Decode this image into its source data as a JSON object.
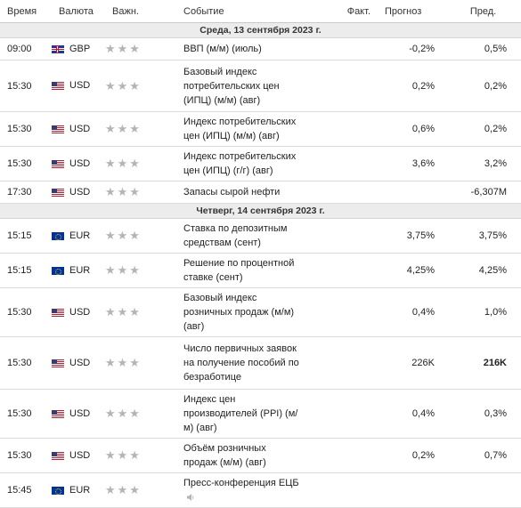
{
  "headers": {
    "time": "Время",
    "currency": "Валюта",
    "importance": "Важн.",
    "event": "Событие",
    "fact": "Факт.",
    "forecast": "Прогноз",
    "previous": "Пред."
  },
  "groups": [
    {
      "date": "Среда, 13 сентября 2023 г.",
      "rows": [
        {
          "time": "09:00",
          "flag": "gb-flag-icon",
          "currency": "GBP",
          "stars": "★★★",
          "event": "ВВП (м/м) (июль)",
          "fact": "",
          "forecast": "-0,2%",
          "previous": "0,5%",
          "prev_bold": false,
          "speaker": false
        },
        {
          "time": "15:30",
          "flag": "us-flag-icon",
          "currency": "USD",
          "stars": "★★★",
          "event": "Базовый индекс потребительских цен (ИПЦ) (м/м) (авг)",
          "fact": "",
          "forecast": "0,2%",
          "previous": "0,2%",
          "prev_bold": false,
          "speaker": false
        },
        {
          "time": "15:30",
          "flag": "us-flag-icon",
          "currency": "USD",
          "stars": "★★★",
          "event": "Индекс потребительских цен (ИПЦ) (м/м) (авг)",
          "fact": "",
          "forecast": "0,6%",
          "previous": "0,2%",
          "prev_bold": false,
          "speaker": false
        },
        {
          "time": "15:30",
          "flag": "us-flag-icon",
          "currency": "USD",
          "stars": "★★★",
          "event": "Индекс потребительских цен (ИПЦ) (г/г) (авг)",
          "fact": "",
          "forecast": "3,6%",
          "previous": "3,2%",
          "prev_bold": false,
          "speaker": false
        },
        {
          "time": "17:30",
          "flag": "us-flag-icon",
          "currency": "USD",
          "stars": "★★★",
          "event": "Запасы сырой нефти",
          "fact": "",
          "forecast": "",
          "previous": "-6,307M",
          "prev_bold": false,
          "speaker": false
        }
      ]
    },
    {
      "date": "Четверг, 14 сентября 2023 г.",
      "rows": [
        {
          "time": "15:15",
          "flag": "eu-flag-icon",
          "currency": "EUR",
          "stars": "★★★",
          "event": "Ставка по депозитным средствам (сент)",
          "fact": "",
          "forecast": "3,75%",
          "previous": "3,75%",
          "prev_bold": false,
          "speaker": false
        },
        {
          "time": "15:15",
          "flag": "eu-flag-icon",
          "currency": "EUR",
          "stars": "★★★",
          "event": "Решение по процентной ставке (сент)",
          "fact": "",
          "forecast": "4,25%",
          "previous": "4,25%",
          "prev_bold": false,
          "speaker": false
        },
        {
          "time": "15:30",
          "flag": "us-flag-icon",
          "currency": "USD",
          "stars": "★★★",
          "event": "Базовый индекс розничных продаж (м/м) (авг)",
          "fact": "",
          "forecast": "0,4%",
          "previous": "1,0%",
          "prev_bold": false,
          "speaker": false
        },
        {
          "time": "15:30",
          "flag": "us-flag-icon",
          "currency": "USD",
          "stars": "★★★",
          "event": "Число первичных заявок на получение пособий по безработице",
          "fact": "",
          "forecast": "226K",
          "previous": "216K",
          "prev_bold": true,
          "speaker": false
        },
        {
          "time": "15:30",
          "flag": "us-flag-icon",
          "currency": "USD",
          "stars": "★★★",
          "event": "Индекс цен производителей (PPI) (м/м) (авг)",
          "fact": "",
          "forecast": "0,4%",
          "previous": "0,3%",
          "prev_bold": false,
          "speaker": false
        },
        {
          "time": "15:30",
          "flag": "us-flag-icon",
          "currency": "USD",
          "stars": "★★★",
          "event": "Объём розничных продаж (м/м) (авг)",
          "fact": "",
          "forecast": "0,2%",
          "previous": "0,7%",
          "prev_bold": false,
          "speaker": false
        },
        {
          "time": "15:45",
          "flag": "eu-flag-icon",
          "currency": "EUR",
          "stars": "★★★",
          "event": "Пресс-конференция ЕЦБ",
          "fact": "",
          "forecast": "",
          "previous": "",
          "prev_bold": false,
          "speaker": true
        }
      ]
    }
  ]
}
